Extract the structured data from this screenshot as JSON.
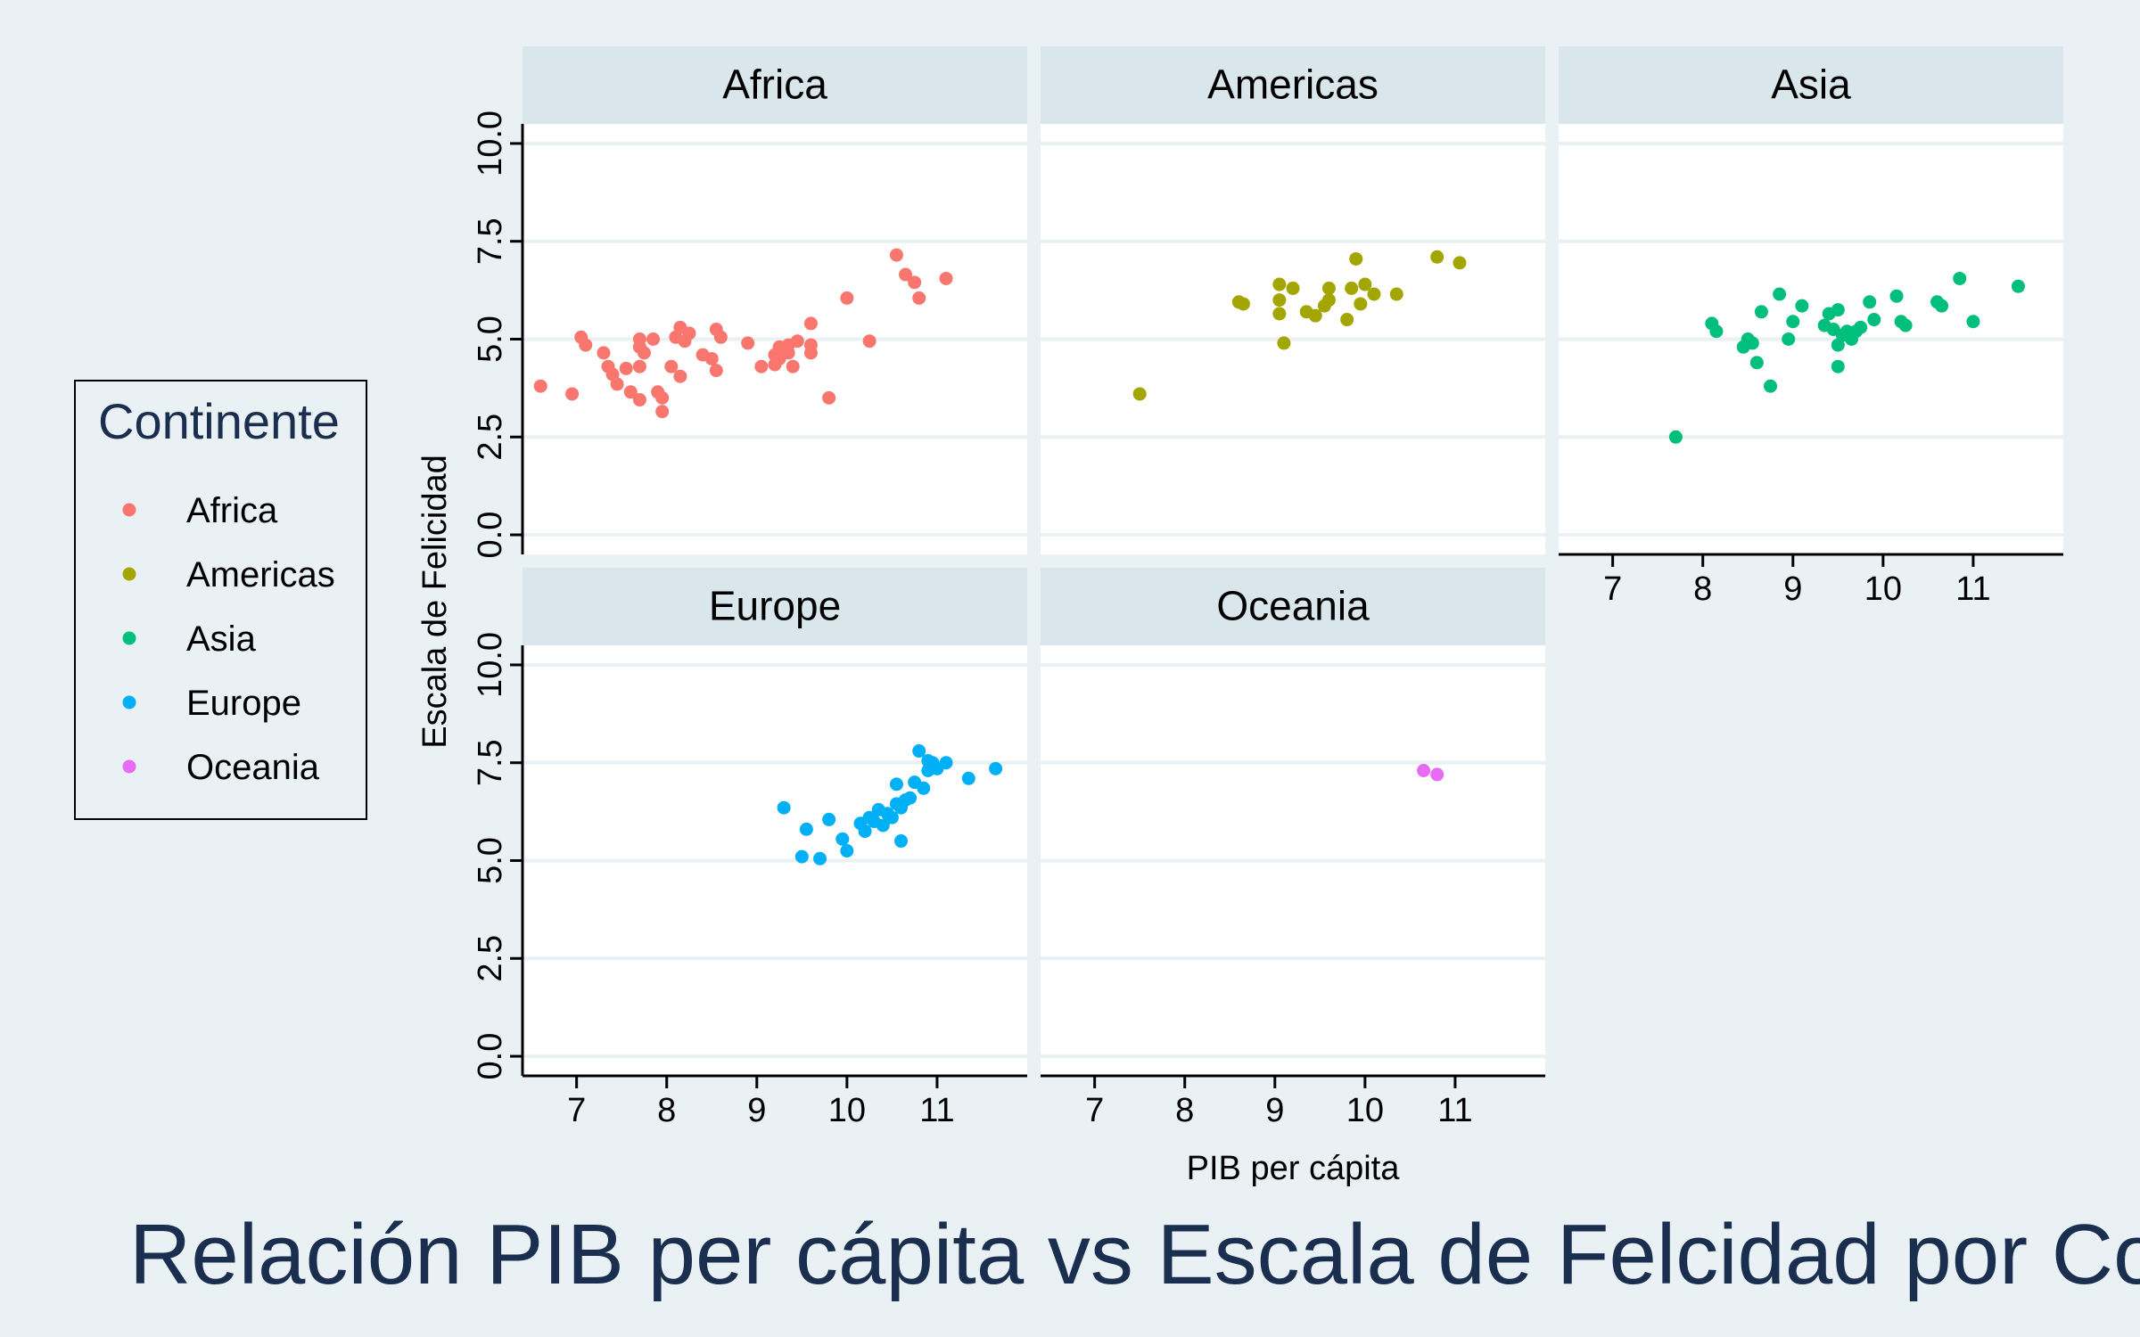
{
  "colors": {
    "background": "#eaf1f4",
    "panel": "#ffffff",
    "strip": "#d9e6eb",
    "grid": "#eaf1f4",
    "title": "#1a2e4f",
    "axis": "#000000",
    "Africa": "#f8766d",
    "Americas": "#a3a500",
    "Asia": "#00bf7d",
    "Europe": "#00b0f6",
    "Oceania": "#e76bf3"
  },
  "chart_data": {
    "type": "scatter",
    "title": "Relación PIB per cápita vs Escala de Felcidad por Continente",
    "xlabel": "PIB per cápita",
    "ylabel": "Escala de Felicidad",
    "xlim": [
      6.4,
      12.0
    ],
    "ylim": [
      -0.5,
      10.5
    ],
    "x_ticks": [
      7,
      8,
      9,
      10,
      11
    ],
    "y_ticks": [
      0,
      2.5,
      5,
      7.5,
      10
    ],
    "y_tick_labels": [
      "0.0",
      "2.5",
      "5.0",
      "7.5",
      "10.0"
    ],
    "grid": true,
    "legend": {
      "title": "Continente",
      "placement": "left",
      "entries": [
        "Africa",
        "Americas",
        "Asia",
        "Europe",
        "Oceania"
      ]
    },
    "facets": [
      {
        "name": "Africa",
        "points": [
          [
            6.6,
            3.8
          ],
          [
            6.95,
            3.6
          ],
          [
            7.05,
            5.05
          ],
          [
            7.1,
            4.85
          ],
          [
            7.3,
            4.65
          ],
          [
            7.35,
            4.3
          ],
          [
            7.4,
            4.1
          ],
          [
            7.45,
            3.85
          ],
          [
            7.55,
            4.25
          ],
          [
            7.6,
            3.65
          ],
          [
            7.7,
            3.45
          ],
          [
            7.7,
            4.3
          ],
          [
            7.7,
            4.8
          ],
          [
            7.7,
            5.0
          ],
          [
            7.75,
            4.65
          ],
          [
            7.85,
            5.0
          ],
          [
            7.9,
            3.65
          ],
          [
            7.95,
            3.5
          ],
          [
            7.95,
            3.15
          ],
          [
            8.05,
            4.3
          ],
          [
            8.1,
            5.05
          ],
          [
            8.15,
            5.3
          ],
          [
            8.15,
            4.05
          ],
          [
            8.2,
            4.95
          ],
          [
            8.25,
            5.15
          ],
          [
            8.4,
            4.6
          ],
          [
            8.5,
            4.5
          ],
          [
            8.55,
            5.25
          ],
          [
            8.55,
            4.2
          ],
          [
            8.6,
            5.05
          ],
          [
            8.9,
            4.9
          ],
          [
            9.05,
            4.3
          ],
          [
            9.2,
            4.35
          ],
          [
            9.2,
            4.6
          ],
          [
            9.25,
            4.5
          ],
          [
            9.25,
            4.8
          ],
          [
            9.35,
            4.65
          ],
          [
            9.35,
            4.85
          ],
          [
            9.4,
            4.3
          ],
          [
            9.45,
            4.95
          ],
          [
            9.6,
            4.85
          ],
          [
            9.6,
            5.4
          ],
          [
            9.6,
            4.65
          ],
          [
            9.8,
            3.5
          ],
          [
            10.0,
            6.05
          ],
          [
            10.25,
            4.95
          ],
          [
            10.55,
            7.15
          ],
          [
            10.65,
            6.65
          ],
          [
            10.75,
            6.45
          ],
          [
            10.8,
            6.05
          ],
          [
            11.1,
            6.55
          ]
        ]
      },
      {
        "name": "Americas",
        "points": [
          [
            7.5,
            3.6
          ],
          [
            8.6,
            5.95
          ],
          [
            8.65,
            5.9
          ],
          [
            9.05,
            6.4
          ],
          [
            9.05,
            6.0
          ],
          [
            9.05,
            5.65
          ],
          [
            9.1,
            4.9
          ],
          [
            9.2,
            6.3
          ],
          [
            9.35,
            5.7
          ],
          [
            9.45,
            5.6
          ],
          [
            9.55,
            5.85
          ],
          [
            9.6,
            6.0
          ],
          [
            9.6,
            6.3
          ],
          [
            9.8,
            5.5
          ],
          [
            9.85,
            6.3
          ],
          [
            9.9,
            7.05
          ],
          [
            9.95,
            5.9
          ],
          [
            10.0,
            6.4
          ],
          [
            10.1,
            6.15
          ],
          [
            10.35,
            6.15
          ],
          [
            10.8,
            7.1
          ],
          [
            11.05,
            6.95
          ]
        ]
      },
      {
        "name": "Asia",
        "points": [
          [
            7.7,
            2.5
          ],
          [
            8.1,
            5.4
          ],
          [
            8.15,
            5.2
          ],
          [
            8.45,
            4.8
          ],
          [
            8.5,
            5.0
          ],
          [
            8.55,
            4.9
          ],
          [
            8.6,
            4.4
          ],
          [
            8.65,
            5.7
          ],
          [
            8.75,
            3.8
          ],
          [
            8.85,
            6.15
          ],
          [
            8.95,
            5.0
          ],
          [
            9.0,
            5.45
          ],
          [
            9.1,
            5.85
          ],
          [
            9.35,
            5.35
          ],
          [
            9.4,
            5.65
          ],
          [
            9.45,
            5.25
          ],
          [
            9.5,
            5.75
          ],
          [
            9.5,
            4.85
          ],
          [
            9.5,
            4.3
          ],
          [
            9.55,
            5.1
          ],
          [
            9.6,
            5.2
          ],
          [
            9.65,
            5.0
          ],
          [
            9.7,
            5.2
          ],
          [
            9.75,
            5.3
          ],
          [
            9.85,
            5.95
          ],
          [
            9.9,
            5.5
          ],
          [
            10.15,
            6.1
          ],
          [
            10.2,
            5.45
          ],
          [
            10.25,
            5.35
          ],
          [
            10.6,
            5.95
          ],
          [
            10.65,
            5.85
          ],
          [
            10.85,
            6.55
          ],
          [
            11.0,
            5.45
          ],
          [
            11.5,
            6.35
          ]
        ]
      },
      {
        "name": "Europe",
        "points": [
          [
            9.3,
            6.35
          ],
          [
            9.5,
            5.1
          ],
          [
            9.55,
            5.8
          ],
          [
            9.7,
            5.05
          ],
          [
            9.8,
            6.05
          ],
          [
            9.95,
            5.55
          ],
          [
            10.0,
            5.25
          ],
          [
            10.15,
            5.95
          ],
          [
            10.2,
            5.75
          ],
          [
            10.25,
            6.1
          ],
          [
            10.3,
            6.0
          ],
          [
            10.35,
            6.3
          ],
          [
            10.4,
            5.9
          ],
          [
            10.45,
            6.2
          ],
          [
            10.5,
            6.1
          ],
          [
            10.55,
            6.45
          ],
          [
            10.55,
            6.95
          ],
          [
            10.6,
            5.5
          ],
          [
            10.6,
            6.35
          ],
          [
            10.65,
            6.55
          ],
          [
            10.7,
            6.6
          ],
          [
            10.75,
            7.0
          ],
          [
            10.8,
            7.8
          ],
          [
            10.85,
            6.85
          ],
          [
            10.9,
            7.3
          ],
          [
            10.9,
            7.55
          ],
          [
            10.95,
            7.5
          ],
          [
            11.0,
            7.35
          ],
          [
            11.1,
            7.5
          ],
          [
            11.35,
            7.1
          ],
          [
            11.65,
            7.35
          ]
        ]
      },
      {
        "name": "Oceania",
        "points": [
          [
            10.65,
            7.3
          ],
          [
            10.8,
            7.2
          ]
        ]
      }
    ]
  }
}
